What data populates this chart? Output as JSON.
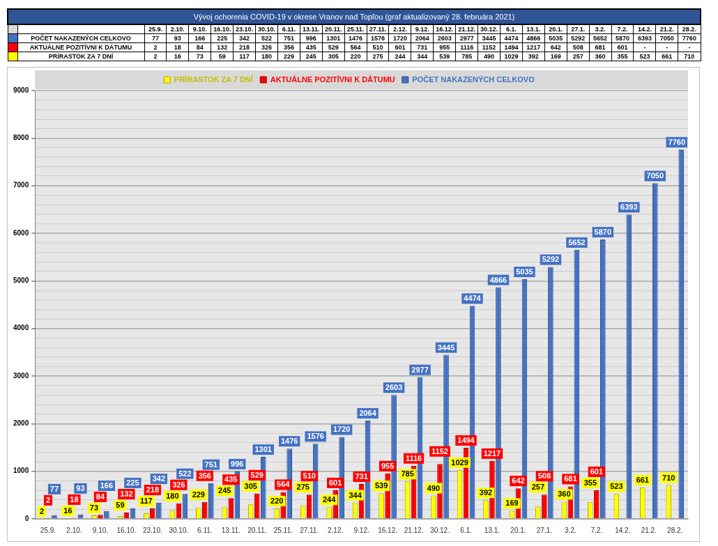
{
  "chart_data": {
    "type": "bar",
    "title": "Vývoj ochorenia COVID-19 v okrese Vranov nad Topľou (graf aktualizovaný 28. februára 2021)",
    "categories": [
      "25.9.",
      "2.10.",
      "9.10.",
      "16.10.",
      "23.10.",
      "30.10.",
      "6.11.",
      "13.11.",
      "20.11.",
      "25.11.",
      "27.11.",
      "2.12.",
      "9.12.",
      "16.12.",
      "21.12.",
      "30.12.",
      "6.1.",
      "13.1.",
      "20.1.",
      "27.1.",
      "3.2.",
      "7.2.",
      "14.2.",
      "21.2.",
      "28.2."
    ],
    "series": [
      {
        "name": "PRÍRASTOK ZA 7 DNÍ",
        "color": "#ffff00",
        "values": [
          2,
          16,
          73,
          59,
          117,
          180,
          229,
          245,
          305,
          220,
          275,
          244,
          344,
          539,
          785,
          490,
          1029,
          392,
          169,
          257,
          360,
          355,
          523,
          661,
          710
        ],
        "value_labels": [
          "2",
          "16",
          "73",
          "59",
          "117",
          "180",
          "229",
          "245",
          "305",
          "220",
          "275",
          "244",
          "344",
          "539",
          "785",
          "490",
          "1029",
          "392",
          "169",
          "257",
          "360",
          "355",
          "523",
          "661",
          "710"
        ]
      },
      {
        "name": "AKTUÁLNE POZITÍVNI K DÁTUMU",
        "color": "#ff0000",
        "values": [
          2,
          18,
          84,
          132,
          218,
          326,
          356,
          435,
          529,
          564,
          510,
          601,
          731,
          955,
          1116,
          1152,
          1494,
          1217,
          642,
          508,
          681,
          601,
          null,
          null,
          null
        ],
        "value_labels": [
          "2",
          "18",
          "84",
          "132",
          "218",
          "326",
          "356",
          "435",
          "529",
          "564",
          "510",
          "601",
          "731",
          "955",
          "1116",
          "1152",
          "1494",
          "1217",
          "642",
          "508",
          "681",
          "601",
          "-",
          "-",
          "-"
        ]
      },
      {
        "name": "POČET NAKAZENÝCH CELKOVO",
        "color": "#4472c4",
        "values": [
          77,
          93,
          166,
          225,
          342,
          522,
          751,
          996,
          1301,
          1476,
          1576,
          1720,
          2064,
          2603,
          2977,
          3445,
          4474,
          4866,
          5035,
          5292,
          5652,
          5870,
          6393,
          7050,
          7760
        ],
        "value_labels": [
          "77",
          "93",
          "166",
          "225",
          "342",
          "522",
          "751",
          "996",
          "1301",
          "1476",
          "1576",
          "1720",
          "2064",
          "2603",
          "2977",
          "3445",
          "4474",
          "4866",
          "5035",
          "5292",
          "5652",
          "5870",
          "6393",
          "7050",
          "7760"
        ]
      }
    ],
    "ylim": [
      0,
      9000
    ],
    "yticks": [
      0,
      {
        "value": 200,
        "label": null
      },
      {
        "value": 400,
        "label": null
      },
      {
        "value": 600,
        "label": null
      },
      {
        "value": 800,
        "label": null
      },
      1000,
      {
        "value": 1200,
        "label": null
      },
      {
        "value": 1400,
        "label": null
      },
      {
        "value": 1600,
        "label": null
      },
      {
        "value": 1800,
        "label": null
      },
      2000,
      {
        "value": 2200,
        "label": null
      },
      {
        "value": 2400,
        "label": null
      },
      {
        "value": 2600,
        "label": null
      },
      {
        "value": 2800,
        "label": null
      },
      3000,
      {
        "value": 3200,
        "label": null
      },
      {
        "value": 3400,
        "label": null
      },
      {
        "value": 3600,
        "label": null
      },
      {
        "value": 3800,
        "label": null
      },
      4000,
      {
        "value": 4200,
        "label": null
      },
      {
        "value": 4400,
        "label": null
      },
      {
        "value": 4600,
        "label": null
      },
      {
        "value": 4800,
        "label": null
      },
      5000,
      {
        "value": 5200,
        "label": null
      },
      {
        "value": 5400,
        "label": null
      },
      {
        "value": 5600,
        "label": null
      },
      {
        "value": 5800,
        "label": null
      },
      6000,
      {
        "value": 6200,
        "label": null
      },
      {
        "value": 6400,
        "label": null
      },
      {
        "value": 6600,
        "label": null
      },
      {
        "value": 6800,
        "label": null
      },
      7000,
      {
        "value": 7200,
        "label": null
      },
      {
        "value": 7400,
        "label": null
      },
      {
        "value": 7600,
        "label": null
      },
      {
        "value": 7800,
        "label": null
      },
      8000,
      {
        "value": 8200,
        "label": null
      },
      {
        "value": 8400,
        "label": null
      },
      {
        "value": 8600,
        "label": null
      },
      {
        "value": 8800,
        "label": null
      },
      9000
    ],
    "grid": "y",
    "legend": "top"
  }
}
